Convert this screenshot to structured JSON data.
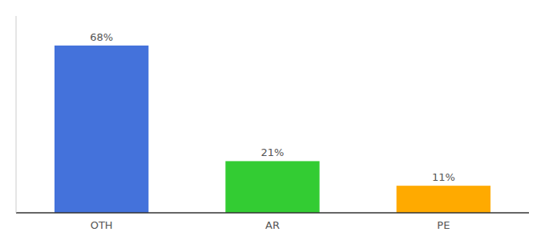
{
  "chart_data": {
    "type": "bar",
    "categories": [
      "OTH",
      "AR",
      "PE"
    ],
    "values": [
      68,
      21,
      11
    ],
    "value_labels": [
      "68%",
      "21%",
      "11%"
    ],
    "colors": [
      "#4472db",
      "#33cc33",
      "#ffaa00"
    ],
    "ylim": [
      0,
      80
    ],
    "data_labels": true,
    "tick_labels": "x",
    "grid": false
  }
}
